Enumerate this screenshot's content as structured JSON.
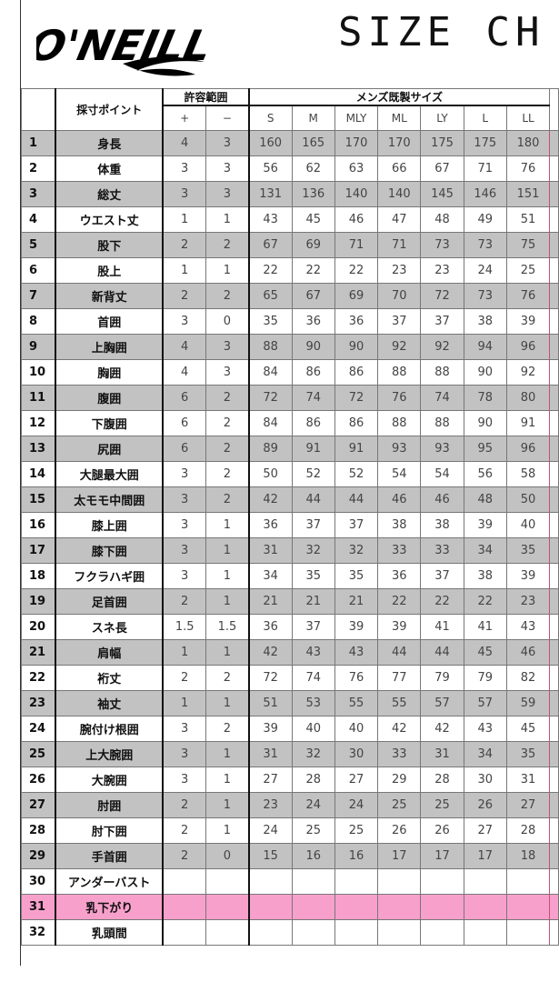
{
  "header": {
    "logo_text": "O'NEILL",
    "title": "SIZE CH"
  },
  "table": {
    "measure_point_label": "採寸ポイント",
    "tolerance_label": "許容範囲",
    "mens_size_label": "メンズ既製サイズ",
    "tolerance_cols": [
      "+",
      "−"
    ],
    "sizes": [
      "S",
      "M",
      "MLY",
      "ML",
      "LY",
      "L",
      "LL"
    ],
    "row_colors": {
      "gray": "#c2c2c2",
      "pink": "#f8a0cc"
    },
    "rows": [
      {
        "no": "1",
        "name": "身長",
        "plus": "4",
        "minus": "3",
        "values": [
          "160",
          "165",
          "170",
          "170",
          "175",
          "175",
          "180"
        ],
        "shade": "gray"
      },
      {
        "no": "2",
        "name": "体重",
        "plus": "3",
        "minus": "3",
        "values": [
          "56",
          "62",
          "63",
          "66",
          "67",
          "71",
          "76"
        ],
        "shade": "white"
      },
      {
        "no": "3",
        "name": "総丈",
        "plus": "3",
        "minus": "3",
        "values": [
          "131",
          "136",
          "140",
          "140",
          "145",
          "146",
          "151"
        ],
        "shade": "gray"
      },
      {
        "no": "4",
        "name": "ウエスト丈",
        "plus": "1",
        "minus": "1",
        "values": [
          "43",
          "45",
          "46",
          "47",
          "48",
          "49",
          "51"
        ],
        "shade": "white"
      },
      {
        "no": "5",
        "name": "股下",
        "plus": "2",
        "minus": "2",
        "values": [
          "67",
          "69",
          "71",
          "71",
          "73",
          "73",
          "75"
        ],
        "shade": "gray"
      },
      {
        "no": "6",
        "name": "股上",
        "plus": "1",
        "minus": "1",
        "values": [
          "22",
          "22",
          "22",
          "23",
          "23",
          "24",
          "25"
        ],
        "shade": "white"
      },
      {
        "no": "7",
        "name": "新背丈",
        "plus": "2",
        "minus": "2",
        "values": [
          "65",
          "67",
          "69",
          "70",
          "72",
          "73",
          "76"
        ],
        "shade": "gray"
      },
      {
        "no": "8",
        "name": "首囲",
        "plus": "3",
        "minus": "0",
        "values": [
          "35",
          "36",
          "36",
          "37",
          "37",
          "38",
          "39"
        ],
        "shade": "white"
      },
      {
        "no": "9",
        "name": "上胸囲",
        "plus": "4",
        "minus": "3",
        "values": [
          "88",
          "90",
          "90",
          "92",
          "92",
          "94",
          "96"
        ],
        "shade": "gray"
      },
      {
        "no": "10",
        "name": "胸囲",
        "plus": "4",
        "minus": "3",
        "values": [
          "84",
          "86",
          "86",
          "88",
          "88",
          "90",
          "92"
        ],
        "shade": "white"
      },
      {
        "no": "11",
        "name": "腹囲",
        "plus": "6",
        "minus": "2",
        "values": [
          "72",
          "74",
          "72",
          "76",
          "74",
          "78",
          "80"
        ],
        "shade": "gray"
      },
      {
        "no": "12",
        "name": "下腹囲",
        "plus": "6",
        "minus": "2",
        "values": [
          "84",
          "86",
          "86",
          "88",
          "88",
          "90",
          "91"
        ],
        "shade": "white"
      },
      {
        "no": "13",
        "name": "尻囲",
        "plus": "6",
        "minus": "2",
        "values": [
          "89",
          "91",
          "91",
          "93",
          "93",
          "95",
          "96"
        ],
        "shade": "gray"
      },
      {
        "no": "14",
        "name": "大腿最大囲",
        "plus": "3",
        "minus": "2",
        "values": [
          "50",
          "52",
          "52",
          "54",
          "54",
          "56",
          "58"
        ],
        "shade": "white"
      },
      {
        "no": "15",
        "name": "太モモ中間囲",
        "plus": "3",
        "minus": "2",
        "values": [
          "42",
          "44",
          "44",
          "46",
          "46",
          "48",
          "50"
        ],
        "shade": "gray"
      },
      {
        "no": "16",
        "name": "膝上囲",
        "plus": "3",
        "minus": "1",
        "values": [
          "36",
          "37",
          "37",
          "38",
          "38",
          "39",
          "40"
        ],
        "shade": "white"
      },
      {
        "no": "17",
        "name": "膝下囲",
        "plus": "3",
        "minus": "1",
        "values": [
          "31",
          "32",
          "32",
          "33",
          "33",
          "34",
          "35"
        ],
        "shade": "gray"
      },
      {
        "no": "18",
        "name": "フクラハギ囲",
        "plus": "3",
        "minus": "1",
        "values": [
          "34",
          "35",
          "35",
          "36",
          "37",
          "38",
          "39"
        ],
        "shade": "white"
      },
      {
        "no": "19",
        "name": "足首囲",
        "plus": "2",
        "minus": "1",
        "values": [
          "21",
          "21",
          "21",
          "22",
          "22",
          "22",
          "23"
        ],
        "shade": "gray"
      },
      {
        "no": "20",
        "name": "スネ長",
        "plus": "1.5",
        "minus": "1.5",
        "values": [
          "36",
          "37",
          "39",
          "39",
          "41",
          "41",
          "43"
        ],
        "shade": "white"
      },
      {
        "no": "21",
        "name": "肩幅",
        "plus": "1",
        "minus": "1",
        "values": [
          "42",
          "43",
          "43",
          "44",
          "44",
          "45",
          "46"
        ],
        "shade": "gray"
      },
      {
        "no": "22",
        "name": "裄丈",
        "plus": "2",
        "minus": "2",
        "values": [
          "72",
          "74",
          "76",
          "77",
          "79",
          "79",
          "82"
        ],
        "shade": "white"
      },
      {
        "no": "23",
        "name": "袖丈",
        "plus": "1",
        "minus": "1",
        "values": [
          "51",
          "53",
          "55",
          "55",
          "57",
          "57",
          "59"
        ],
        "shade": "gray"
      },
      {
        "no": "24",
        "name": "腕付け根囲",
        "plus": "3",
        "minus": "2",
        "values": [
          "39",
          "40",
          "40",
          "42",
          "42",
          "43",
          "45"
        ],
        "shade": "white"
      },
      {
        "no": "25",
        "name": "上大腕囲",
        "plus": "3",
        "minus": "1",
        "values": [
          "31",
          "32",
          "30",
          "33",
          "31",
          "34",
          "35"
        ],
        "shade": "gray"
      },
      {
        "no": "26",
        "name": "大腕囲",
        "plus": "3",
        "minus": "1",
        "values": [
          "27",
          "28",
          "27",
          "29",
          "28",
          "30",
          "31"
        ],
        "shade": "white"
      },
      {
        "no": "27",
        "name": "肘囲",
        "plus": "2",
        "minus": "1",
        "values": [
          "23",
          "24",
          "24",
          "25",
          "25",
          "26",
          "27"
        ],
        "shade": "gray"
      },
      {
        "no": "28",
        "name": "肘下囲",
        "plus": "2",
        "minus": "1",
        "values": [
          "24",
          "25",
          "25",
          "26",
          "26",
          "27",
          "28"
        ],
        "shade": "white"
      },
      {
        "no": "29",
        "name": "手首囲",
        "plus": "2",
        "minus": "0",
        "values": [
          "15",
          "16",
          "16",
          "17",
          "17",
          "17",
          "18"
        ],
        "shade": "gray"
      },
      {
        "no": "30",
        "name": "アンダーバスト",
        "plus": "",
        "minus": "",
        "values": [
          "",
          "",
          "",
          "",
          "",
          "",
          ""
        ],
        "shade": "white"
      },
      {
        "no": "31",
        "name": "乳下がり",
        "plus": "",
        "minus": "",
        "values": [
          "",
          "",
          "",
          "",
          "",
          "",
          ""
        ],
        "shade": "pink"
      },
      {
        "no": "32",
        "name": "乳頭間",
        "plus": "",
        "minus": "",
        "values": [
          "",
          "",
          "",
          "",
          "",
          "",
          ""
        ],
        "shade": "white"
      }
    ]
  }
}
